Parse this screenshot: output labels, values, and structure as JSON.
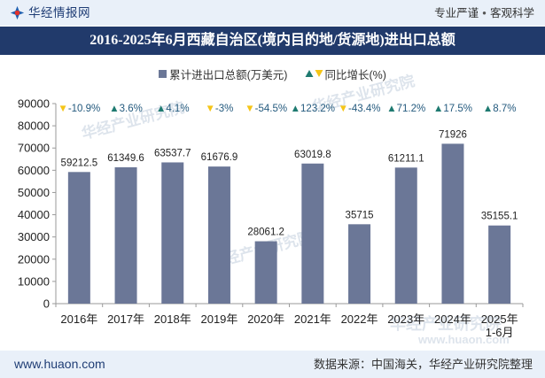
{
  "header": {
    "logo_text": "华经情报网",
    "slogan": [
      "专业严谨",
      "客观科学"
    ],
    "separator": "●"
  },
  "colors": {
    "bar": "#6b7797",
    "growth_up": "#1e7a70",
    "growth_down": "#f5c518",
    "growth_text": "#245a7e",
    "title_bg": "#213a6b",
    "band_bg": "#e9f0f9"
  },
  "icons": {
    "logo": "huajing-logo-icon",
    "legend_square": "legend-square-icon",
    "up": "up-triangle-icon",
    "down": "down-triangle-icon"
  },
  "chart_data": {
    "type": "bar",
    "title": "2016-2025年6月西藏自治区(境内目的地/货源地)进出口总额",
    "categories": [
      "2016年",
      "2017年",
      "2018年",
      "2019年",
      "2020年",
      "2021年",
      "2022年",
      "2023年",
      "2024年",
      "2025年\n1-6月"
    ],
    "series": [
      {
        "name": "累计进出口总额(万美元)",
        "values": [
          59212.5,
          61349.6,
          63537.7,
          61676.9,
          28061.2,
          63019.8,
          35715,
          61211.1,
          71926,
          35155.1
        ]
      },
      {
        "name": "同比增长(%)",
        "values": [
          -10.9,
          3.6,
          4.1,
          -3,
          -54.5,
          123.2,
          -43.4,
          71.2,
          17.5,
          8.7
        ]
      }
    ],
    "ylim": [
      0,
      90000
    ],
    "yticks": [
      0,
      10000,
      20000,
      30000,
      40000,
      50000,
      60000,
      70000,
      80000,
      90000
    ],
    "legend_position": "top-center",
    "grid": false
  },
  "footer": {
    "website": "www.huaon.com",
    "source": "数据来源：中国海关，华经产业研究院整理"
  },
  "watermarks": [
    "华经产业研究院",
    "www.huaon.com"
  ]
}
